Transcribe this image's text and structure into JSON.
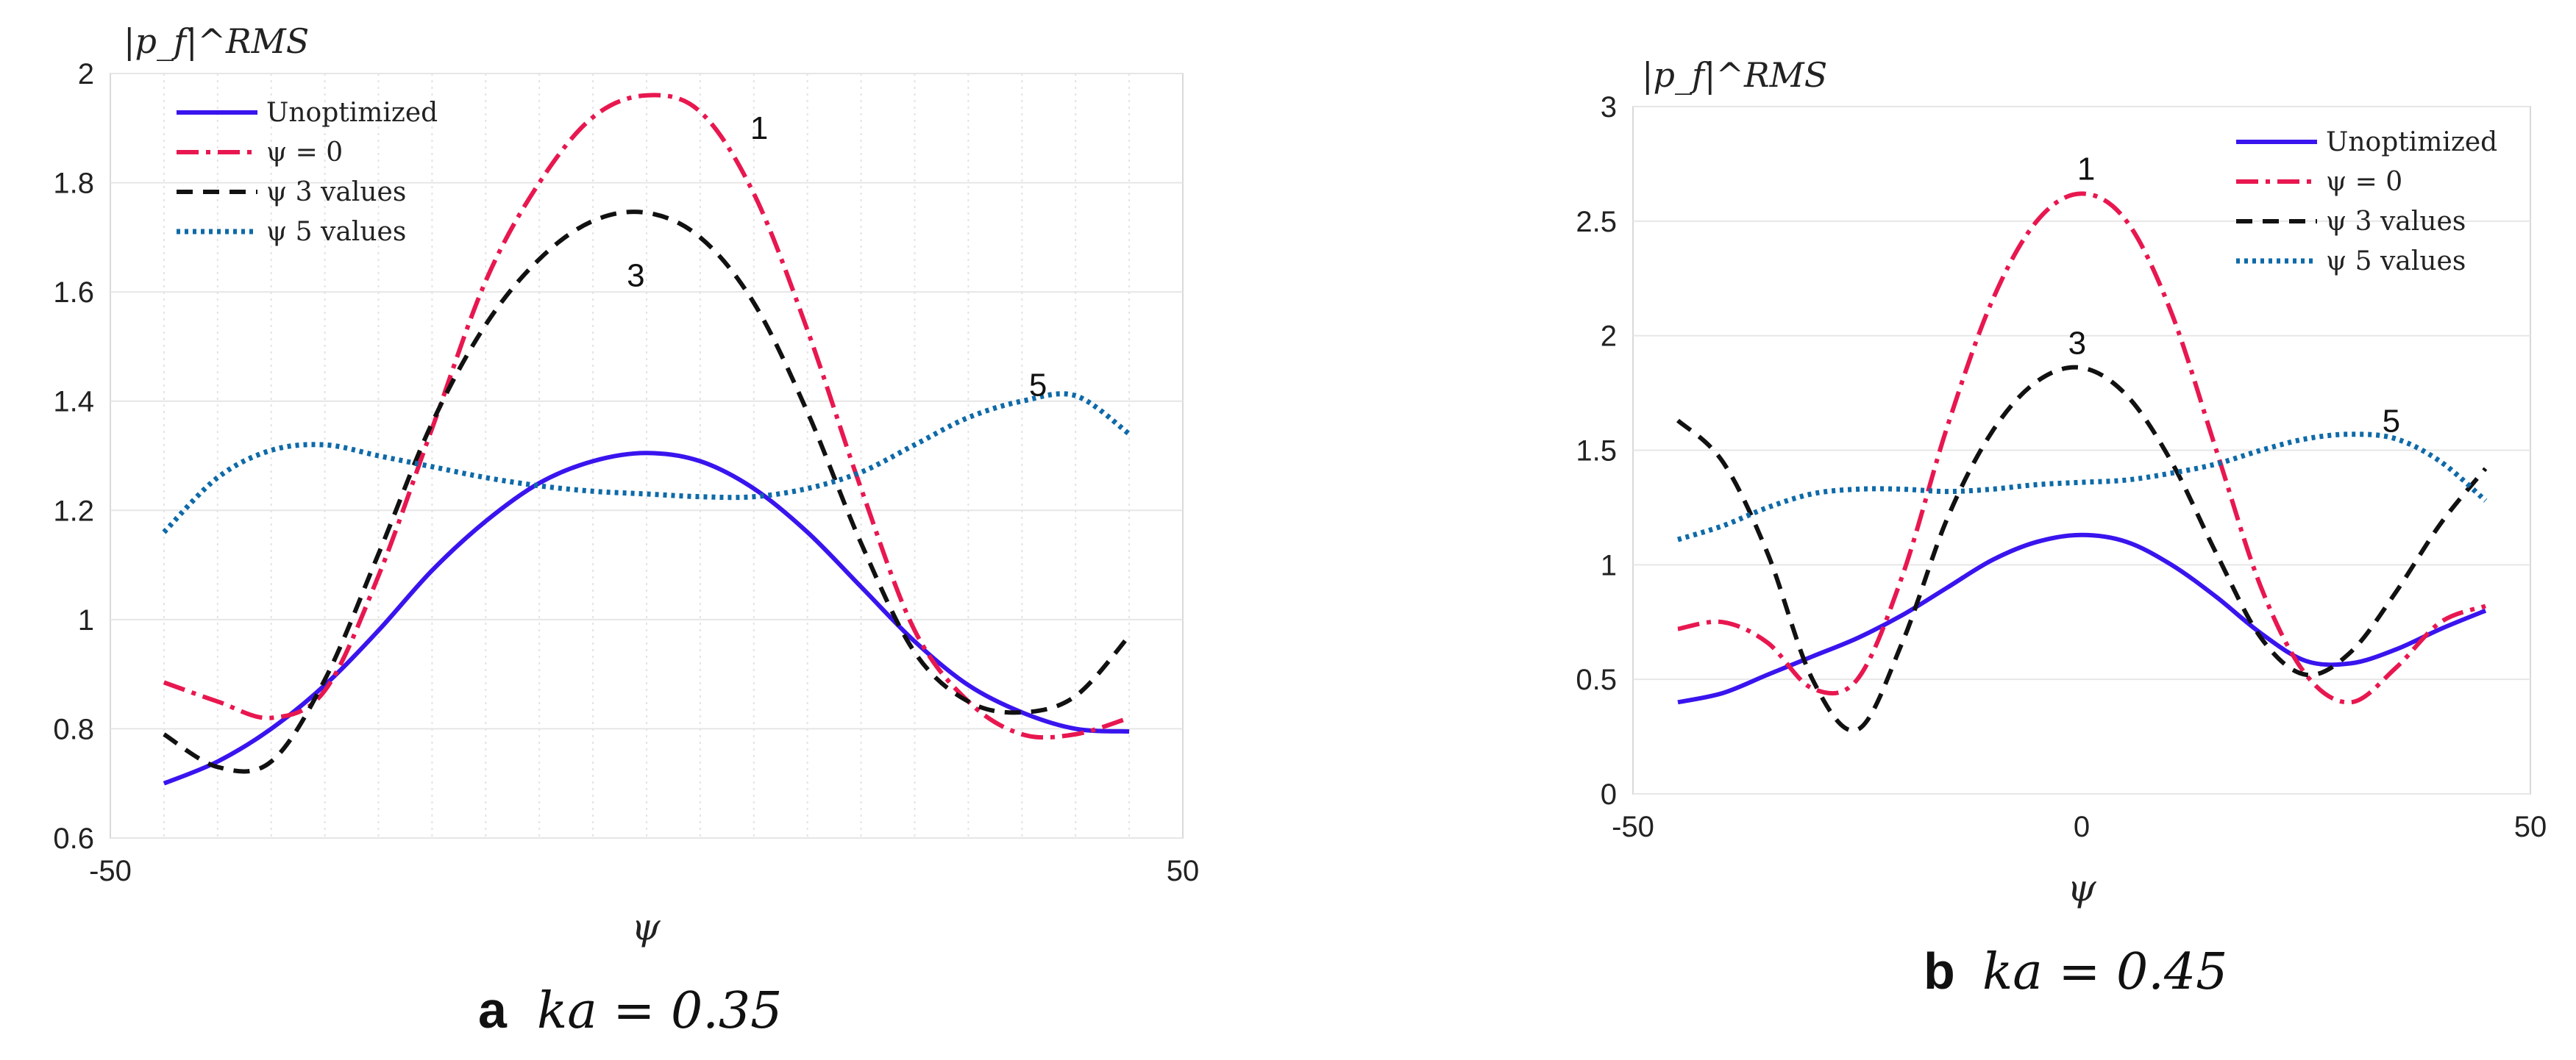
{
  "chart_data": [
    {
      "type": "line",
      "panel_letter": "a",
      "caption": "ka = 0.35",
      "ylabel": "|p_f|^RMS",
      "xlabel": "ψ",
      "xlim": [
        -50,
        50
      ],
      "ylim": [
        0.6,
        2
      ],
      "xticks": [
        -50,
        50
      ],
      "yticks": [
        0.6,
        0.8,
        1,
        1.2,
        1.4,
        1.6,
        1.8,
        2
      ],
      "ytick_labels": [
        "0.6",
        "0.8",
        "1",
        "1.2",
        "1.4",
        "1.6",
        "1.8",
        "2"
      ],
      "xtick_labels": [
        "-50",
        "50"
      ],
      "legend_position": "top-left",
      "series": [
        {
          "name": "Unoptimized",
          "color": "#3a14ee",
          "style": "solid",
          "x": [
            -45,
            -40,
            -35,
            -30,
            -25,
            -20,
            -15,
            -10,
            -5,
            0,
            5,
            10,
            15,
            20,
            25,
            30,
            35,
            40,
            45
          ],
          "y": [
            0.7,
            0.74,
            0.8,
            0.88,
            0.98,
            1.09,
            1.18,
            1.25,
            1.29,
            1.305,
            1.29,
            1.24,
            1.16,
            1.06,
            0.96,
            0.88,
            0.83,
            0.8,
            0.795
          ]
        },
        {
          "name": "ψ = 0",
          "color": "#e8174f",
          "style": "dashdot",
          "x": [
            -45,
            -40,
            -35,
            -30,
            -25,
            -20,
            -15,
            -10,
            -5,
            0,
            5,
            10,
            15,
            20,
            25,
            30,
            35,
            40,
            45
          ],
          "y": [
            0.885,
            0.85,
            0.82,
            0.87,
            1.08,
            1.35,
            1.62,
            1.8,
            1.92,
            1.96,
            1.93,
            1.78,
            1.53,
            1.24,
            0.98,
            0.85,
            0.79,
            0.79,
            0.82
          ]
        },
        {
          "name": "ψ 3 values",
          "color": "#111111",
          "style": "dashed",
          "x": [
            -45,
            -40,
            -35,
            -30,
            -25,
            -20,
            -15,
            -10,
            -5,
            0,
            5,
            10,
            15,
            20,
            25,
            30,
            35,
            40,
            45
          ],
          "y": [
            0.79,
            0.73,
            0.74,
            0.89,
            1.12,
            1.36,
            1.54,
            1.66,
            1.73,
            1.745,
            1.7,
            1.58,
            1.38,
            1.14,
            0.94,
            0.85,
            0.83,
            0.86,
            0.97
          ]
        },
        {
          "name": "ψ 5 values",
          "color": "#0e6aa8",
          "style": "dotted",
          "x": [
            -45,
            -40,
            -35,
            -30,
            -25,
            -20,
            -15,
            -10,
            -5,
            0,
            5,
            10,
            15,
            20,
            25,
            30,
            35,
            40,
            45
          ],
          "y": [
            1.16,
            1.26,
            1.31,
            1.32,
            1.3,
            1.28,
            1.26,
            1.245,
            1.235,
            1.23,
            1.225,
            1.225,
            1.24,
            1.27,
            1.32,
            1.37,
            1.4,
            1.41,
            1.34
          ]
        }
      ],
      "annotations": [
        {
          "text": "1",
          "x": 10.5,
          "y": 1.88
        },
        {
          "text": "3",
          "x": -1,
          "y": 1.61
        },
        {
          "text": "5",
          "x": 36.5,
          "y": 1.41
        }
      ]
    },
    {
      "type": "line",
      "panel_letter": "b",
      "caption": "ka = 0.45",
      "ylabel": "|p_f|^RMS",
      "xlabel": "ψ",
      "xlim": [
        -50,
        50
      ],
      "ylim": [
        0,
        3
      ],
      "xticks": [
        -50,
        0,
        50
      ],
      "yticks": [
        0,
        0.5,
        1,
        1.5,
        2,
        2.5,
        3
      ],
      "ytick_labels": [
        "0",
        "0.5",
        "1",
        "1.5",
        "2",
        "2.5",
        "3"
      ],
      "xtick_labels": [
        "-50",
        "0",
        "50"
      ],
      "legend_position": "top-right",
      "series": [
        {
          "name": "Unoptimized",
          "color": "#3a14ee",
          "style": "solid",
          "x": [
            -45,
            -40,
            -35,
            -30,
            -25,
            -20,
            -15,
            -10,
            -5,
            0,
            5,
            10,
            15,
            20,
            25,
            30,
            35,
            40,
            45
          ],
          "y": [
            0.4,
            0.44,
            0.52,
            0.6,
            0.68,
            0.78,
            0.9,
            1.02,
            1.1,
            1.13,
            1.1,
            1.0,
            0.86,
            0.7,
            0.58,
            0.57,
            0.63,
            0.72,
            0.8
          ]
        },
        {
          "name": "ψ = 0",
          "color": "#e8174f",
          "style": "dashdot",
          "x": [
            -45,
            -40,
            -35,
            -30,
            -25,
            -20,
            -15,
            -10,
            -5,
            0,
            5,
            10,
            15,
            20,
            25,
            30,
            35,
            40,
            45
          ],
          "y": [
            0.72,
            0.75,
            0.66,
            0.46,
            0.5,
            0.95,
            1.6,
            2.15,
            2.5,
            2.62,
            2.5,
            2.1,
            1.5,
            0.9,
            0.52,
            0.4,
            0.55,
            0.75,
            0.82
          ]
        },
        {
          "name": "ψ 3 values",
          "color": "#111111",
          "style": "dashed",
          "x": [
            -45,
            -40,
            -35,
            -30,
            -25,
            -20,
            -15,
            -10,
            -5,
            0,
            5,
            10,
            15,
            20,
            25,
            30,
            35,
            40,
            45
          ],
          "y": [
            1.63,
            1.45,
            1.05,
            0.5,
            0.28,
            0.66,
            1.2,
            1.58,
            1.8,
            1.86,
            1.74,
            1.45,
            1.05,
            0.68,
            0.52,
            0.62,
            0.88,
            1.18,
            1.42
          ]
        },
        {
          "name": "ψ 5 values",
          "color": "#0e6aa8",
          "style": "dotted",
          "x": [
            -45,
            -40,
            -35,
            -30,
            -25,
            -20,
            -15,
            -10,
            -5,
            0,
            5,
            10,
            15,
            20,
            25,
            30,
            35,
            40,
            45
          ],
          "y": [
            1.11,
            1.17,
            1.25,
            1.31,
            1.33,
            1.33,
            1.32,
            1.33,
            1.35,
            1.36,
            1.37,
            1.4,
            1.44,
            1.5,
            1.55,
            1.57,
            1.55,
            1.45,
            1.28
          ]
        }
      ],
      "annotations": [
        {
          "text": "1",
          "x": 0.5,
          "y": 2.68
        },
        {
          "text": "3",
          "x": -0.5,
          "y": 1.92
        },
        {
          "text": "5",
          "x": 34.5,
          "y": 1.58
        }
      ]
    }
  ]
}
